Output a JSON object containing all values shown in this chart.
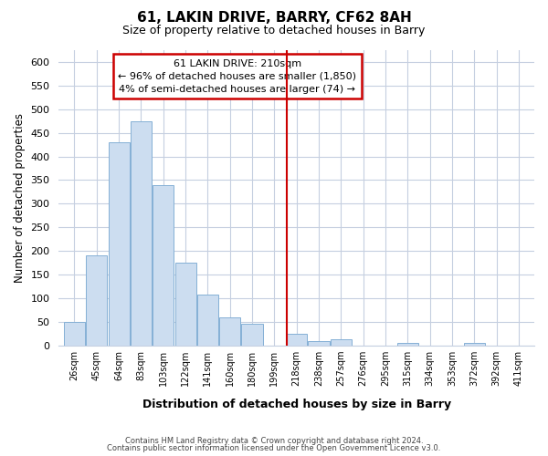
{
  "title": "61, LAKIN DRIVE, BARRY, CF62 8AH",
  "subtitle": "Size of property relative to detached houses in Barry",
  "xlabel": "Distribution of detached houses by size in Barry",
  "ylabel": "Number of detached properties",
  "bar_color": "#ccddf0",
  "bar_edgecolor": "#85b0d5",
  "bin_labels": [
    "26sqm",
    "45sqm",
    "64sqm",
    "83sqm",
    "103sqm",
    "122sqm",
    "141sqm",
    "160sqm",
    "180sqm",
    "199sqm",
    "218sqm",
    "238sqm",
    "257sqm",
    "276sqm",
    "295sqm",
    "315sqm",
    "334sqm",
    "353sqm",
    "372sqm",
    "392sqm",
    "411sqm"
  ],
  "bar_heights": [
    50,
    190,
    430,
    475,
    340,
    175,
    108,
    60,
    45,
    0,
    25,
    10,
    13,
    0,
    0,
    5,
    0,
    0,
    5,
    0,
    0
  ],
  "ylim": [
    0,
    625
  ],
  "yticks": [
    0,
    50,
    100,
    150,
    200,
    250,
    300,
    350,
    400,
    450,
    500,
    550,
    600
  ],
  "annotation_title": "61 LAKIN DRIVE: 210sqm",
  "annotation_line1": "← 96% of detached houses are smaller (1,850)",
  "annotation_line2": "4% of semi-detached houses are larger (74) →",
  "annotation_box_color": "#ffffff",
  "annotation_box_edgecolor": "#cc0000",
  "vline_color": "#cc0000",
  "footer_line1": "Contains HM Land Registry data © Crown copyright and database right 2024.",
  "footer_line2": "Contains public sector information licensed under the Open Government Licence v3.0.",
  "background_color": "#ffffff",
  "grid_color": "#c5cfe0"
}
